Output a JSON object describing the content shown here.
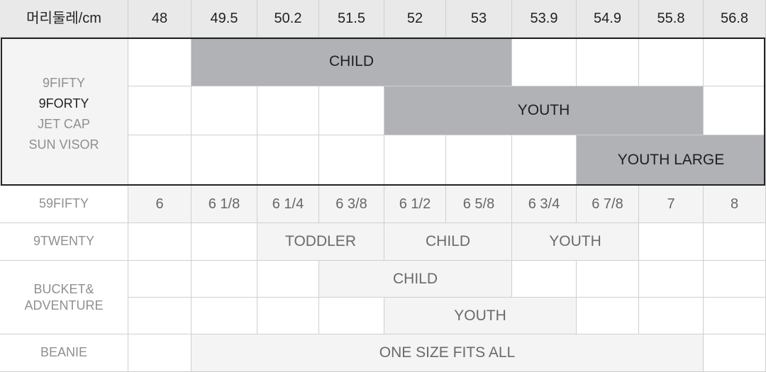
{
  "header": {
    "label": "머리둘레/cm",
    "sizes": [
      "48",
      "49.5",
      "50.2",
      "51.5",
      "52",
      "53",
      "53.9",
      "54.9",
      "55.8",
      "56.8"
    ]
  },
  "groups": {
    "nine_forty_group": [
      "9FIFTY",
      "9FORTY",
      "JET CAP",
      "SUN VISOR"
    ],
    "bars": [
      "CHILD",
      "YOUTH",
      "YOUTH LARGE"
    ]
  },
  "fifty_nine": {
    "label": "59FIFTY",
    "values": [
      "6",
      "6 1/8",
      "6 1/4",
      "6 3/8",
      "6 1/2",
      "6 5/8",
      "6 3/4",
      "6 7/8",
      "7",
      "8"
    ]
  },
  "nine_twenty": {
    "label": "9TWENTY",
    "bands": [
      "TODDLER",
      "CHILD",
      "YOUTH"
    ]
  },
  "bucket": {
    "label_lines": [
      "BUCKET&",
      "ADVENTURE"
    ],
    "bands": [
      "CHILD",
      "YOUTH"
    ]
  },
  "beanie": {
    "label": "BEANIE",
    "band": "ONE SIZE FITS ALL"
  },
  "colors": {
    "header_bg": "#e9e9ea",
    "bar_fill": "#b1b2b5",
    "band_fill": "#f4f4f4",
    "grid_line": "#cfcfcf",
    "highlight_border": "#222222"
  }
}
